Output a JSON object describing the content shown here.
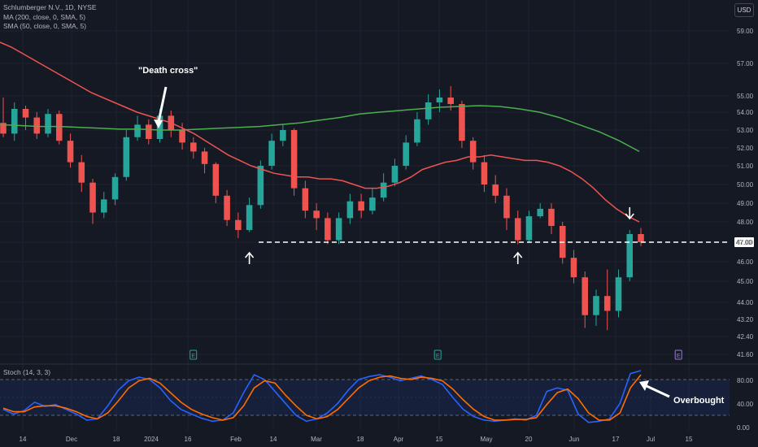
{
  "legend": {
    "symbol_line": "Schlumberger N.V., 1D, NYSE",
    "ma200_line": "MA (200, close, 0, SMA, 5)",
    "sma50_line": "SMA (50, close, 0, SMA, 5)"
  },
  "currency": "USD",
  "stoch_label": "Stoch (14, 3, 3)",
  "annotations": {
    "death_cross": "\"Death cross\"",
    "overbought": "Overbought"
  },
  "price_tag": "47.00",
  "earnings_marker": "E",
  "colors": {
    "background": "#151924",
    "up": "#26a69a",
    "down": "#ef5350",
    "sma50": "#ef5350",
    "ma200": "#4caf50",
    "stoch_k": "#2962ff",
    "stoch_d": "#ff6d00"
  },
  "chart_data": {
    "type": "candlestick",
    "y_ticks": [
      "59.00",
      "57.00",
      "55.00",
      "54.00",
      "53.00",
      "52.00",
      "51.00",
      "50.00",
      "49.00",
      "48.00",
      "47.00",
      "46.00",
      "45.00",
      "44.00",
      "43.20",
      "42.40",
      "41.60"
    ],
    "x_ticks": [
      "14",
      "Dec",
      "18",
      "2024",
      "16",
      "Feb",
      "14",
      "Mar",
      "18",
      "Apr",
      "15",
      "May",
      "20",
      "Jun",
      "17",
      "Jul",
      "15"
    ],
    "stoch_ticks": [
      "80.00",
      "40.00",
      "0.00"
    ],
    "stoch_levels": [
      80,
      20
    ],
    "support_level": 47.0,
    "sma50": [
      58.3,
      58.0,
      57.6,
      57.2,
      56.8,
      56.4,
      56.0,
      55.6,
      55.2,
      54.9,
      54.6,
      54.3,
      54.0,
      53.8,
      53.6,
      53.4,
      53.1,
      52.8,
      52.4,
      52.0,
      51.6,
      51.3,
      51.0,
      50.8,
      50.6,
      50.5,
      50.4,
      50.4,
      50.3,
      50.3,
      50.2,
      50.0,
      49.8,
      49.8,
      49.9,
      50.1,
      50.4,
      50.8,
      51.0,
      51.2,
      51.3,
      51.5,
      51.5,
      51.6,
      51.5,
      51.4,
      51.3,
      51.3,
      51.2,
      51.0,
      50.7,
      50.3,
      49.8,
      49.2,
      48.7,
      48.3,
      48.0
    ],
    "ma200": [
      53.3,
      53.25,
      53.2,
      53.2,
      53.15,
      53.1,
      53.05,
      53.05,
      53.0,
      53.0,
      53.05,
      53.1,
      53.15,
      53.2,
      53.3,
      53.4,
      53.55,
      53.7,
      53.9,
      54.0,
      54.1,
      54.2,
      54.3,
      54.35,
      54.4,
      54.35,
      54.2,
      54.0,
      53.7,
      53.3,
      52.9,
      52.4,
      51.8
    ],
    "candles": [
      [
        53.4,
        52.8,
        54.9,
        52.6
      ],
      [
        52.8,
        54.2,
        54.6,
        52.4
      ],
      [
        54.2,
        53.7,
        54.4,
        53.0
      ],
      [
        53.7,
        52.8,
        54.0,
        52.5
      ],
      [
        52.8,
        53.9,
        54.2,
        52.6
      ],
      [
        53.9,
        52.4,
        54.1,
        52.2
      ],
      [
        52.4,
        51.2,
        52.8,
        50.9
      ],
      [
        51.2,
        50.1,
        51.6,
        49.6
      ],
      [
        50.1,
        48.5,
        50.3,
        47.9
      ],
      [
        48.5,
        49.2,
        49.6,
        48.2
      ],
      [
        49.2,
        50.4,
        50.6,
        48.9
      ],
      [
        50.4,
        52.6,
        53.0,
        50.2
      ],
      [
        52.6,
        53.3,
        53.8,
        52.4
      ],
      [
        53.3,
        52.5,
        53.6,
        52.2
      ],
      [
        52.5,
        53.8,
        54.2,
        52.3
      ],
      [
        53.8,
        53.0,
        54.1,
        52.6
      ],
      [
        53.0,
        52.3,
        53.4,
        51.9
      ],
      [
        52.3,
        51.8,
        52.6,
        51.4
      ],
      [
        51.8,
        51.1,
        52.0,
        50.6
      ],
      [
        51.1,
        49.4,
        51.2,
        49.0
      ],
      [
        49.4,
        48.1,
        49.7,
        47.8
      ],
      [
        48.1,
        47.6,
        48.5,
        47.2
      ],
      [
        47.6,
        48.9,
        49.3,
        47.5
      ],
      [
        48.9,
        51.0,
        51.3,
        48.7
      ],
      [
        51.0,
        52.4,
        52.8,
        50.8
      ],
      [
        52.4,
        53.0,
        53.3,
        52.1
      ],
      [
        53.0,
        49.8,
        53.1,
        49.4
      ],
      [
        49.8,
        48.6,
        50.2,
        48.2
      ],
      [
        48.6,
        48.2,
        49.0,
        47.6
      ],
      [
        48.2,
        47.1,
        48.5,
        46.9
      ],
      [
        47.1,
        48.2,
        48.5,
        46.9
      ],
      [
        48.2,
        49.1,
        49.5,
        47.9
      ],
      [
        49.1,
        48.6,
        49.5,
        48.2
      ],
      [
        48.6,
        49.3,
        49.8,
        48.4
      ],
      [
        49.3,
        50.1,
        50.6,
        49.1
      ],
      [
        50.1,
        51.0,
        51.4,
        49.9
      ],
      [
        51.0,
        52.3,
        52.7,
        50.8
      ],
      [
        52.3,
        53.6,
        54.0,
        52.1
      ],
      [
        53.6,
        54.6,
        55.1,
        53.3
      ],
      [
        54.6,
        54.9,
        55.4,
        54.0
      ],
      [
        54.9,
        54.5,
        55.6,
        54.1
      ],
      [
        54.5,
        52.4,
        54.7,
        52.0
      ],
      [
        52.4,
        51.2,
        52.6,
        50.8
      ],
      [
        51.2,
        50.0,
        51.6,
        49.6
      ],
      [
        50.0,
        49.4,
        50.5,
        49.0
      ],
      [
        49.4,
        48.2,
        49.8,
        47.6
      ],
      [
        48.2,
        47.1,
        48.6,
        46.9
      ],
      [
        47.1,
        48.3,
        48.6,
        47.0
      ],
      [
        48.3,
        48.7,
        49.0,
        48.2
      ],
      [
        48.7,
        47.8,
        49.0,
        47.4
      ],
      [
        47.8,
        46.2,
        48.0,
        45.9
      ],
      [
        46.2,
        45.2,
        46.6,
        44.9
      ],
      [
        45.2,
        43.4,
        45.5,
        42.8
      ],
      [
        43.4,
        44.3,
        44.6,
        42.9
      ],
      [
        44.3,
        43.6,
        45.6,
        42.7
      ],
      [
        43.6,
        45.2,
        45.6,
        43.3
      ],
      [
        45.2,
        47.4,
        47.6,
        45.0
      ],
      [
        47.4,
        47.0,
        47.7,
        46.8
      ]
    ],
    "stoch_k": [
      30,
      22,
      28,
      42,
      35,
      38,
      30,
      22,
      12,
      14,
      36,
      62,
      78,
      84,
      80,
      66,
      45,
      30,
      22,
      15,
      10,
      12,
      24,
      58,
      88,
      80,
      60,
      40,
      20,
      10,
      14,
      24,
      40,
      62,
      80,
      85,
      88,
      84,
      78,
      82,
      86,
      80,
      72,
      50,
      30,
      18,
      12,
      10,
      12,
      14,
      12,
      20,
      60,
      66,
      62,
      22,
      8,
      10,
      14,
      40,
      90,
      95
    ],
    "stoch_d": [
      32,
      26,
      26,
      34,
      36,
      36,
      32,
      26,
      18,
      14,
      24,
      44,
      66,
      78,
      82,
      74,
      58,
      42,
      30,
      22,
      16,
      12,
      16,
      36,
      66,
      78,
      74,
      54,
      36,
      20,
      14,
      18,
      30,
      48,
      66,
      78,
      84,
      86,
      82,
      80,
      84,
      82,
      78,
      64,
      46,
      30,
      18,
      12,
      12,
      13,
      13,
      16,
      38,
      58,
      64,
      48,
      24,
      12,
      12,
      24,
      66,
      88
    ],
    "arrows": [
      {
        "dir": "up",
        "at_candle": 22,
        "price": 46.2
      },
      {
        "dir": "up",
        "at_candle": 46,
        "price": 46.2
      },
      {
        "dir": "down",
        "at_candle": 56,
        "price": 48.3
      }
    ],
    "earnings_at_x_fraction": [
      0.265,
      0.6,
      0.93
    ]
  }
}
